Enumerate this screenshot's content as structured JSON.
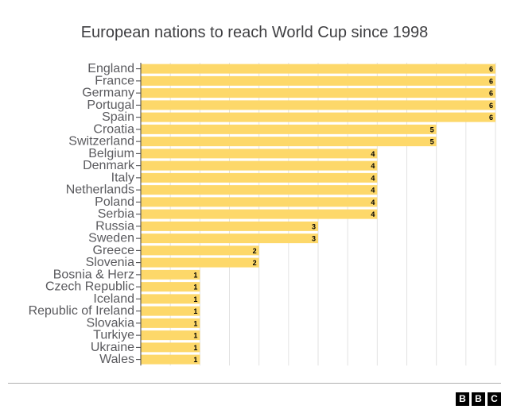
{
  "chart_data": {
    "type": "bar",
    "orientation": "horizontal",
    "title": "European nations to reach World Cup since 1998",
    "categories": [
      "England",
      "France",
      "Germany",
      "Portugal",
      "Spain",
      "Croatia",
      "Switzerland",
      "Belgium",
      "Denmark",
      "Italy",
      "Netherlands",
      "Poland",
      "Serbia",
      "Russia",
      "Sweden",
      "Greece",
      "Slovenia",
      "Bosnia & Herz",
      "Czech Republic",
      "Iceland",
      "Republic of Ireland",
      "Slovakia",
      "Turkiye",
      "Ukraine",
      "Wales"
    ],
    "values": [
      6,
      6,
      6,
      6,
      6,
      5,
      5,
      4,
      4,
      4,
      4,
      4,
      4,
      3,
      3,
      2,
      2,
      1,
      1,
      1,
      1,
      1,
      1,
      1,
      1
    ],
    "xlim": [
      0,
      6
    ],
    "grid": true,
    "bar_color": "#fdd86a",
    "value_label_color": "#000000"
  },
  "logo": {
    "letters": [
      "B",
      "B",
      "C"
    ]
  }
}
